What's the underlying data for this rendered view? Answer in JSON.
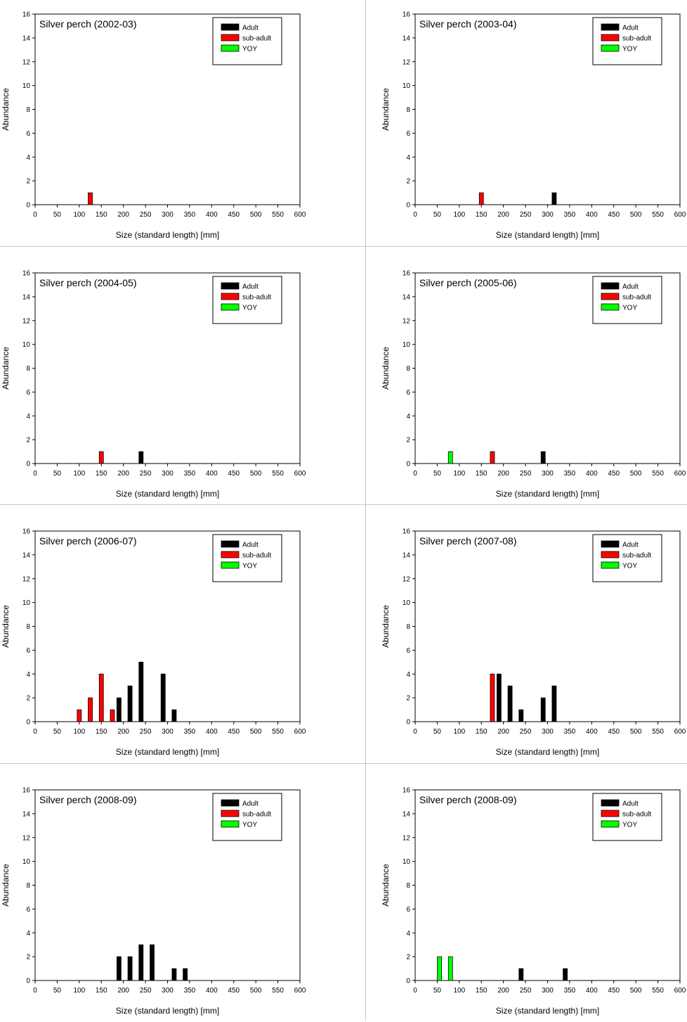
{
  "colors": {
    "Adult": "#000000",
    "sub-adult": "#ff0000",
    "YOY": "#00ff00"
  },
  "chart_data": [
    {
      "type": "bar",
      "title": "Silver perch (2002-03)",
      "xlabel": "Size (standard length) [mm]",
      "ylabel": "Abundance",
      "xlim": [
        0,
        600
      ],
      "ylim": [
        0,
        16
      ],
      "xticks": [
        0,
        50,
        100,
        150,
        200,
        250,
        300,
        350,
        400,
        450,
        500,
        550,
        600
      ],
      "yticks": [
        0,
        2,
        4,
        6,
        8,
        10,
        12,
        14,
        16
      ],
      "legend": [
        "Adult",
        "sub-adult",
        "YOY"
      ],
      "legend_position": "top-right",
      "grid": false,
      "series": [
        {
          "name": "Adult",
          "points": []
        },
        {
          "name": "sub-adult",
          "points": [
            [
              125,
              1
            ]
          ]
        },
        {
          "name": "YOY",
          "points": []
        }
      ]
    },
    {
      "type": "bar",
      "title": "Silver perch (2003-04)",
      "xlabel": "Size (standard length) [mm]",
      "ylabel": "Abundance",
      "xlim": [
        0,
        600
      ],
      "ylim": [
        0,
        16
      ],
      "xticks": [
        0,
        50,
        100,
        150,
        200,
        250,
        300,
        350,
        400,
        450,
        500,
        550,
        600
      ],
      "yticks": [
        0,
        2,
        4,
        6,
        8,
        10,
        12,
        14,
        16
      ],
      "legend": [
        "Adult",
        "sub-adult",
        "YOY"
      ],
      "legend_position": "top-right",
      "grid": false,
      "series": [
        {
          "name": "Adult",
          "points": [
            [
              315,
              1
            ]
          ]
        },
        {
          "name": "sub-adult",
          "points": [
            [
              150,
              1
            ]
          ]
        },
        {
          "name": "YOY",
          "points": []
        }
      ]
    },
    {
      "type": "bar",
      "title": "Silver perch (2004-05)",
      "xlabel": "Size (standard length) [mm]",
      "ylabel": "Abundance",
      "xlim": [
        0,
        600
      ],
      "ylim": [
        0,
        16
      ],
      "xticks": [
        0,
        50,
        100,
        150,
        200,
        250,
        300,
        350,
        400,
        450,
        500,
        550,
        600
      ],
      "yticks": [
        0,
        2,
        4,
        6,
        8,
        10,
        12,
        14,
        16
      ],
      "legend": [
        "Adult",
        "sub-adult",
        "YOY"
      ],
      "legend_position": "top-right",
      "grid": false,
      "series": [
        {
          "name": "Adult",
          "points": [
            [
              240,
              1
            ]
          ]
        },
        {
          "name": "sub-adult",
          "points": [
            [
              150,
              1
            ]
          ]
        },
        {
          "name": "YOY",
          "points": []
        }
      ]
    },
    {
      "type": "bar",
      "title": "Silver perch (2005-06)",
      "xlabel": "Size (standard length) [mm]",
      "ylabel": "Abundance",
      "xlim": [
        0,
        600
      ],
      "ylim": [
        0,
        16
      ],
      "xticks": [
        0,
        50,
        100,
        150,
        200,
        250,
        300,
        350,
        400,
        450,
        500,
        550,
        600
      ],
      "yticks": [
        0,
        2,
        4,
        6,
        8,
        10,
        12,
        14,
        16
      ],
      "legend": [
        "Adult",
        "sub-adult",
        "YOY"
      ],
      "legend_position": "top-right",
      "grid": false,
      "series": [
        {
          "name": "Adult",
          "points": [
            [
              290,
              1
            ]
          ]
        },
        {
          "name": "sub-adult",
          "points": [
            [
              175,
              1
            ]
          ]
        },
        {
          "name": "YOY",
          "points": [
            [
              80,
              1
            ]
          ]
        }
      ]
    },
    {
      "type": "bar",
      "title": "Silver perch (2006-07)",
      "xlabel": "Size (standard length) [mm]",
      "ylabel": "Abundance",
      "xlim": [
        0,
        600
      ],
      "ylim": [
        0,
        16
      ],
      "xticks": [
        0,
        50,
        100,
        150,
        200,
        250,
        300,
        350,
        400,
        450,
        500,
        550,
        600
      ],
      "yticks": [
        0,
        2,
        4,
        6,
        8,
        10,
        12,
        14,
        16
      ],
      "legend": [
        "Adult",
        "sub-adult",
        "YOY"
      ],
      "legend_position": "top-right",
      "grid": false,
      "series": [
        {
          "name": "Adult",
          "points": [
            [
              190,
              2
            ],
            [
              215,
              3
            ],
            [
              240,
              5
            ],
            [
              290,
              4
            ],
            [
              315,
              1
            ]
          ]
        },
        {
          "name": "sub-adult",
          "points": [
            [
              100,
              1
            ],
            [
              125,
              2
            ],
            [
              150,
              4
            ],
            [
              175,
              1
            ]
          ]
        },
        {
          "name": "YOY",
          "points": []
        }
      ]
    },
    {
      "type": "bar",
      "title": "Silver perch (2007-08)",
      "xlabel": "Size (standard length) [mm]",
      "ylabel": "Abundance",
      "xlim": [
        0,
        600
      ],
      "ylim": [
        0,
        16
      ],
      "xticks": [
        0,
        50,
        100,
        150,
        200,
        250,
        300,
        350,
        400,
        450,
        500,
        550,
        600
      ],
      "yticks": [
        0,
        2,
        4,
        6,
        8,
        10,
        12,
        14,
        16
      ],
      "legend": [
        "Adult",
        "sub-adult",
        "YOY"
      ],
      "legend_position": "top-right",
      "grid": false,
      "series": [
        {
          "name": "Adult",
          "points": [
            [
              190,
              4
            ],
            [
              215,
              3
            ],
            [
              240,
              1
            ],
            [
              290,
              2
            ],
            [
              315,
              3
            ]
          ]
        },
        {
          "name": "sub-adult",
          "points": [
            [
              175,
              4
            ]
          ]
        },
        {
          "name": "YOY",
          "points": []
        }
      ]
    },
    {
      "type": "bar",
      "title": "Silver perch (2008-09)",
      "xlabel": "Size (standard length) [mm]",
      "ylabel": "Abundance",
      "xlim": [
        0,
        600
      ],
      "ylim": [
        0,
        16
      ],
      "xticks": [
        0,
        50,
        100,
        150,
        200,
        250,
        300,
        350,
        400,
        450,
        500,
        550,
        600
      ],
      "yticks": [
        0,
        2,
        4,
        6,
        8,
        10,
        12,
        14,
        16
      ],
      "legend": [
        "Adult",
        "sub-adult",
        "YOY"
      ],
      "legend_position": "top-right",
      "grid": false,
      "series": [
        {
          "name": "Adult",
          "points": [
            [
              190,
              2
            ],
            [
              215,
              2
            ],
            [
              240,
              3
            ],
            [
              265,
              3
            ],
            [
              315,
              1
            ],
            [
              340,
              1
            ]
          ]
        },
        {
          "name": "sub-adult",
          "points": []
        },
        {
          "name": "YOY",
          "points": []
        }
      ]
    },
    {
      "type": "bar",
      "title": "Silver perch (2008-09)",
      "xlabel": "Size (standard length) [mm]",
      "ylabel": "Abundance",
      "xlim": [
        0,
        600
      ],
      "ylim": [
        0,
        16
      ],
      "xticks": [
        0,
        50,
        100,
        150,
        200,
        250,
        300,
        350,
        400,
        450,
        500,
        550,
        600
      ],
      "yticks": [
        0,
        2,
        4,
        6,
        8,
        10,
        12,
        14,
        16
      ],
      "legend": [
        "Adult",
        "sub-adult",
        "YOY"
      ],
      "legend_position": "top-right",
      "grid": false,
      "series": [
        {
          "name": "Adult",
          "points": [
            [
              240,
              1
            ],
            [
              340,
              1
            ]
          ]
        },
        {
          "name": "sub-adult",
          "points": []
        },
        {
          "name": "YOY",
          "points": [
            [
              55,
              2
            ],
            [
              80,
              2
            ]
          ]
        }
      ]
    }
  ]
}
